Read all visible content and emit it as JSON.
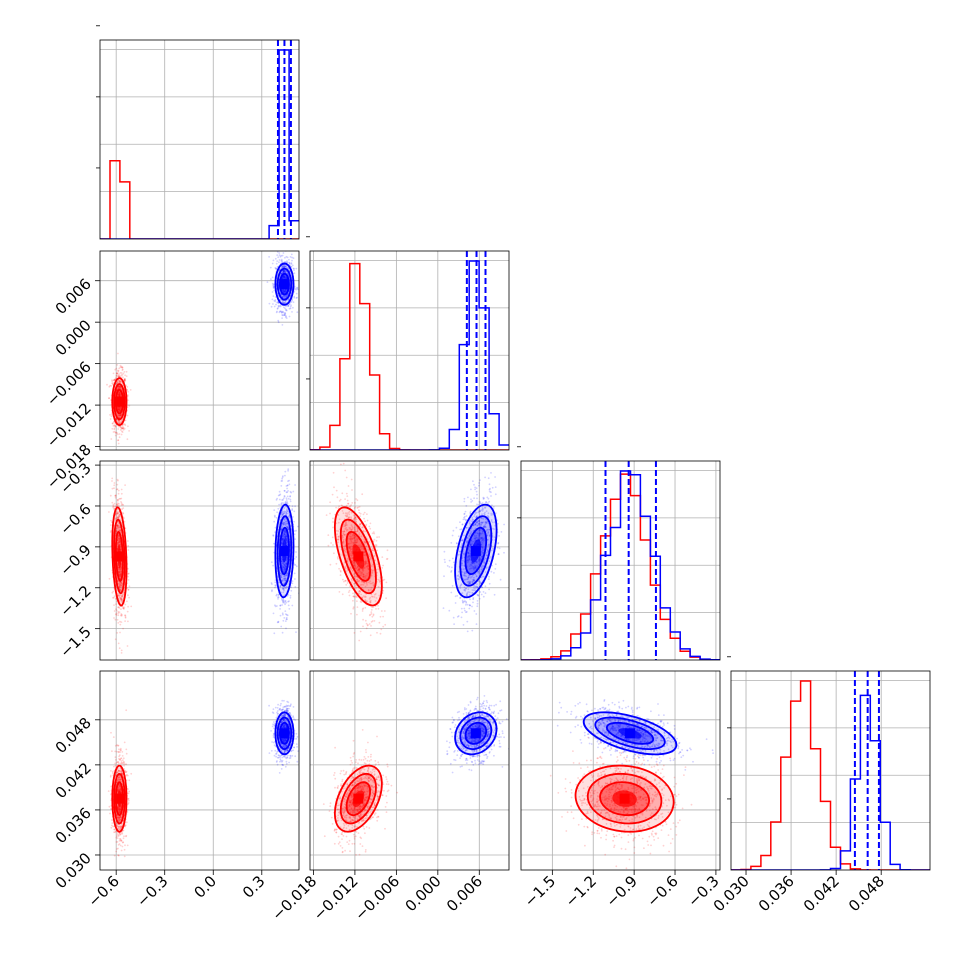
{
  "chart_data": {
    "type": "corner",
    "parameters": [
      {
        "key": "p1",
        "range": [
          -0.7,
          0.53
        ],
        "ticks": [
          -0.6,
          -0.3,
          0.0,
          0.3
        ],
        "tick_labels": [
          "−0.6",
          "−0.3",
          "0.0",
          "0.3"
        ]
      },
      {
        "key": "p2",
        "range": [
          -0.0185,
          0.0103
        ],
        "ticks": [
          -0.018,
          -0.012,
          -0.006,
          0.0,
          0.006
        ],
        "tick_labels": [
          "−0.018",
          "−0.012",
          "−0.006",
          "0.000",
          "0.006"
        ]
      },
      {
        "key": "p3",
        "range": [
          -1.73,
          -0.27
        ],
        "ticks": [
          -1.5,
          -1.2,
          -0.9,
          -0.6,
          -0.3
        ],
        "tick_labels": [
          "−1.5",
          "−1.2",
          "−0.9",
          "−0.6",
          "−0.3"
        ]
      },
      {
        "key": "p4",
        "range": [
          0.028,
          0.0545
        ],
        "ticks": [
          0.03,
          0.036,
          0.042,
          0.048
        ],
        "tick_labels": [
          "0.030",
          "0.036",
          "0.042",
          "0.048"
        ]
      }
    ],
    "series": [
      {
        "color": "#ff0000",
        "mean": [
          -0.58,
          -0.0115,
          -0.97,
          0.0375
        ],
        "std": [
          0.022,
          0.0017,
          0.18,
          0.0022
        ],
        "correlations": {
          "1-3": -0.25,
          "2-3": -0.6,
          "2-4": 0.45,
          "3-4": -0.1
        }
      },
      {
        "color": "#0000ff",
        "mean": [
          0.44,
          0.0055,
          -0.93,
          0.0462
        ],
        "std": [
          0.028,
          0.0015,
          0.17,
          0.0014
        ],
        "correlations": {
          "1-3": 0.1,
          "2-3": 0.45,
          "2-4": 0.2,
          "3-4": -0.55
        }
      }
    ],
    "quantile_lines": {
      "color": "#0000ff",
      "style": "dashed",
      "values": [
        [
          0.4,
          0.44,
          0.48
        ],
        [
          0.0042,
          0.0056,
          0.0069
        ],
        [
          -1.11,
          -0.94,
          -0.74
        ],
        [
          0.0445,
          0.0462,
          0.0477
        ]
      ]
    },
    "contour_levels": [
      0.5,
      1.0,
      1.5,
      2.0
    ],
    "grid": true,
    "title": "",
    "legend": "none"
  }
}
